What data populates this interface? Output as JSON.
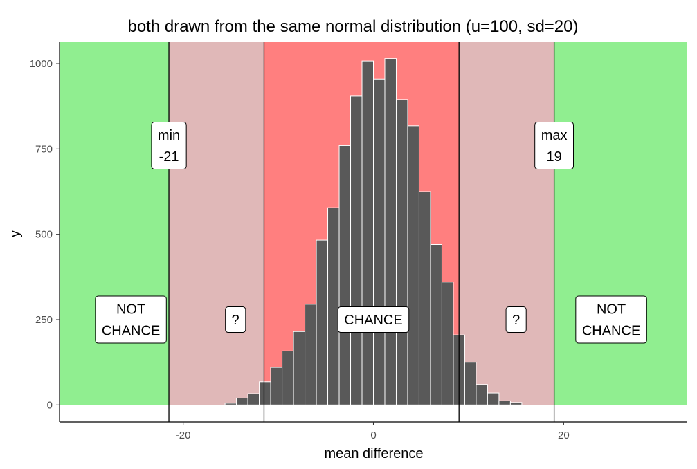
{
  "chart_data": {
    "type": "bar",
    "title": "both drawn from the same normal distribution (u=100, sd=20)",
    "xlabel": "mean difference",
    "ylabel": "y",
    "xlim": [
      -33,
      33
    ],
    "ylim": [
      -50,
      1065
    ],
    "x_ticks": [
      -20,
      0,
      20
    ],
    "y_ticks": [
      0,
      250,
      500,
      750,
      1000
    ],
    "grid": false,
    "bin_width": 1.2,
    "bins": [
      {
        "x": -15.0,
        "y": 5
      },
      {
        "x": -13.8,
        "y": 20
      },
      {
        "x": -12.6,
        "y": 33
      },
      {
        "x": -11.4,
        "y": 68
      },
      {
        "x": -10.2,
        "y": 110
      },
      {
        "x": -9.0,
        "y": 158
      },
      {
        "x": -7.8,
        "y": 215
      },
      {
        "x": -6.6,
        "y": 295
      },
      {
        "x": -5.4,
        "y": 483
      },
      {
        "x": -4.2,
        "y": 578
      },
      {
        "x": -3.0,
        "y": 760
      },
      {
        "x": -1.8,
        "y": 905
      },
      {
        "x": -0.6,
        "y": 1008
      },
      {
        "x": 0.6,
        "y": 955
      },
      {
        "x": 1.8,
        "y": 1015
      },
      {
        "x": 3.0,
        "y": 895
      },
      {
        "x": 4.2,
        "y": 818
      },
      {
        "x": 5.4,
        "y": 625
      },
      {
        "x": 6.6,
        "y": 470
      },
      {
        "x": 7.8,
        "y": 360
      },
      {
        "x": 9.0,
        "y": 205
      },
      {
        "x": 10.2,
        "y": 125
      },
      {
        "x": 11.4,
        "y": 60
      },
      {
        "x": 12.6,
        "y": 35
      },
      {
        "x": 13.8,
        "y": 12
      },
      {
        "x": 15.0,
        "y": 7
      }
    ],
    "regions": [
      {
        "name": "not-chance-left",
        "xmin": -33,
        "xmax": -21.5,
        "color": "#90ee90"
      },
      {
        "name": "uncertain-left",
        "xmin": -21.5,
        "xmax": -11.5,
        "color": "#e0b8b8"
      },
      {
        "name": "chance",
        "xmin": -11.5,
        "xmax": 9.0,
        "color": "#ff7f7f"
      },
      {
        "name": "uncertain-right",
        "xmin": 9.0,
        "xmax": 19.0,
        "color": "#e0b8b8"
      },
      {
        "name": "not-chance-right",
        "xmin": 19.0,
        "xmax": 33,
        "color": "#90ee90"
      }
    ],
    "vlines": [
      -21.5,
      -11.5,
      9.0,
      19.0
    ],
    "annotations": [
      {
        "name": "min-label",
        "lines": [
          "min",
          "-21"
        ],
        "x": -21.5,
        "y": 760
      },
      {
        "name": "max-label",
        "lines": [
          "max",
          "19"
        ],
        "x": 19.0,
        "y": 760
      },
      {
        "name": "not-chance-left-label",
        "lines": [
          "NOT",
          "CHANCE"
        ],
        "x": -25.5,
        "y": 250
      },
      {
        "name": "uncertain-left-label",
        "lines": [
          "?"
        ],
        "x": -14.5,
        "y": 250
      },
      {
        "name": "chance-label",
        "lines": [
          "CHANCE"
        ],
        "x": 0,
        "y": 250
      },
      {
        "name": "uncertain-right-label",
        "lines": [
          "?"
        ],
        "x": 15.0,
        "y": 250
      },
      {
        "name": "not-chance-right-label",
        "lines": [
          "NOT",
          "CHANCE"
        ],
        "x": 25.0,
        "y": 250
      }
    ],
    "colors": {
      "bar_fill": "#595959",
      "bar_stroke": "#ffffff",
      "vline": "#000000",
      "axis": "#000000",
      "box_fill": "#ffffff",
      "box_stroke": "#000000"
    }
  }
}
